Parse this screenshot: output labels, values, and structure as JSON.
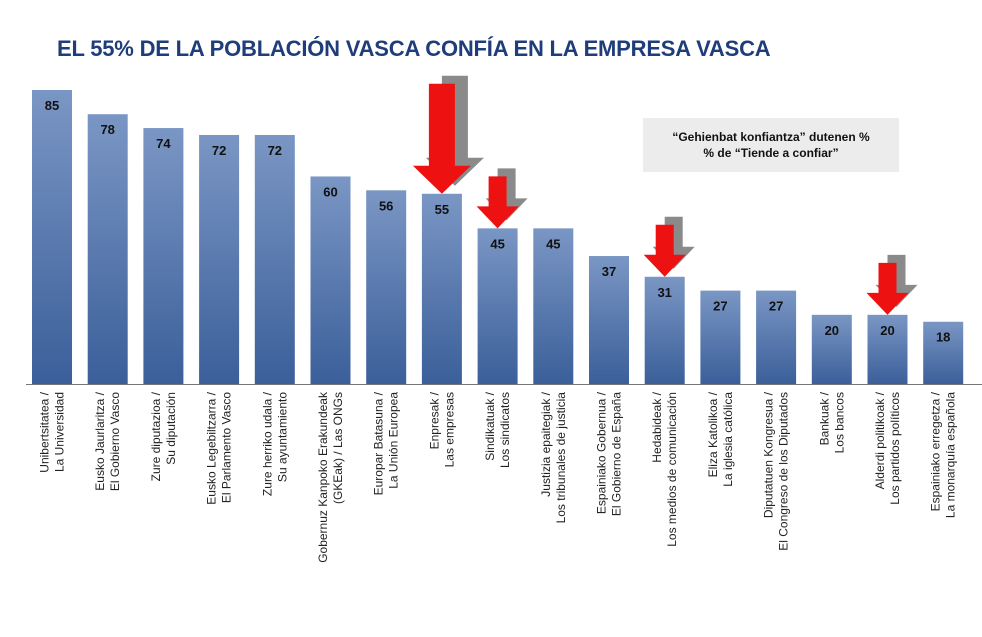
{
  "chart_data": {
    "type": "bar",
    "title": "EL 55% DE LA POBLACIÓN VASCA CONFÍA EN LA EMPRESA VASCA",
    "legend_line1": "“Gehienbat konfiantza” dutenen %",
    "legend_line2": "% de “Tiende a confiar”",
    "ylim": [
      0,
      85
    ],
    "bar_color": "#7a96c4",
    "bar_color_dark": "#3b5f9a",
    "arrow_color": "#ee1111",
    "arrow_shadow_color": "#8a8a8a",
    "categories": [
      [
        "Unibertsitatea /",
        "La Universidad"
      ],
      [
        "Eusko Jaurlaritza /",
        "El Gobierno Vasco"
      ],
      [
        "Zure diputazioa /",
        "Su diputación"
      ],
      [
        "Eusko Legebiltzarra /",
        "El Parlamento Vasco"
      ],
      [
        "Zure herriko udala /",
        "Su ayuntamiento"
      ],
      [
        "Gobernuz Kanpoko Erakundeak",
        "(GKEak) / Las ONGs"
      ],
      [
        "Europar Batasuna /",
        "La Unión Europea"
      ],
      [
        "Enpresak /",
        "Las empresas"
      ],
      [
        "Sindikatuak /",
        "Los sindicatos"
      ],
      [
        "Justizia epaitegiak /",
        "Los tribunales de justicia"
      ],
      [
        "Espainiako Gobernua /",
        "El Gobierno de España"
      ],
      [
        "Hedabideak /",
        "Los medios de comunicación"
      ],
      [
        "Eliza Katolikoa /",
        "La iglesia católica"
      ],
      [
        "Diputatuen Kongresua /",
        "El Congreso de los Diputados"
      ],
      [
        "Bankuak /",
        "Los bancos"
      ],
      [
        "Alderdi politikoak /",
        "Los partidos políticos"
      ],
      [
        "Espainiako erregetza /",
        "La monarquía española"
      ]
    ],
    "values": [
      85,
      78,
      74,
      72,
      72,
      60,
      56,
      55,
      45,
      45,
      37,
      31,
      27,
      27,
      20,
      20,
      18
    ],
    "value_labels": [
      "85",
      "78",
      "74",
      "72",
      "72",
      "60",
      "56",
      "55",
      "45",
      "45",
      "37",
      "31",
      "27",
      "27",
      "20",
      "20",
      "18"
    ],
    "highlighted": [
      7,
      8,
      11,
      15
    ]
  }
}
